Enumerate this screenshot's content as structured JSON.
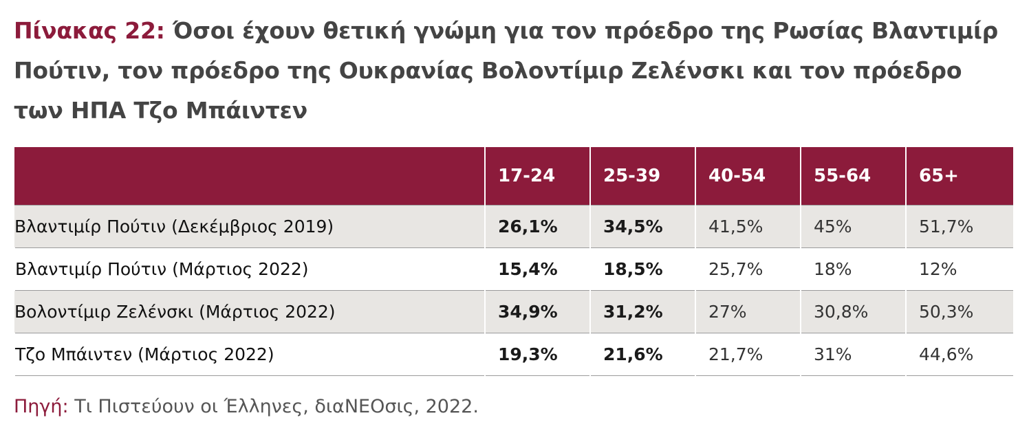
{
  "title": {
    "label": "Πίνακας 22:",
    "text": "Όσοι έχουν θετική γνώμη για τον πρόεδρο της Ρωσίας Βλαντιμίρ Πούτιν, τον πρόεδρο της Ουκρανίας Βολοντίμιρ Ζελένσκι και τον πρόεδρο των ΗΠΑ Τζο Μπάιντεν"
  },
  "table": {
    "headers": [
      "",
      "17-24",
      "25-39",
      "40-54",
      "55-64",
      "65+"
    ],
    "rows": [
      [
        "Βλαντιμίρ Πούτιν (Δεκέμβριος 2019)",
        "26,1%",
        "34,5%",
        "41,5%",
        "45%",
        "51,7%"
      ],
      [
        "Βλαντιμίρ Πούτιν (Μάρτιος 2022)",
        "15,4%",
        "18,5%",
        "25,7%",
        "18%",
        "12%"
      ],
      [
        "Βολοντίμιρ Ζελένσκι (Μάρτιος 2022)",
        "34,9%",
        "31,2%",
        "27%",
        "30,8%",
        "50,3%"
      ],
      [
        "Τζο Μπάιντεν (Μάρτιος 2022)",
        "19,3%",
        "21,6%",
        "21,7%",
        "31%",
        "44,6%"
      ]
    ]
  },
  "source": {
    "label": "Πηγή:",
    "text": "Τι Πιστεύουν οι Έλληνες, διαNEOσις, 2022."
  },
  "colors": {
    "accent": "#8c1b3b",
    "row_shade": "#e8e6e3"
  }
}
